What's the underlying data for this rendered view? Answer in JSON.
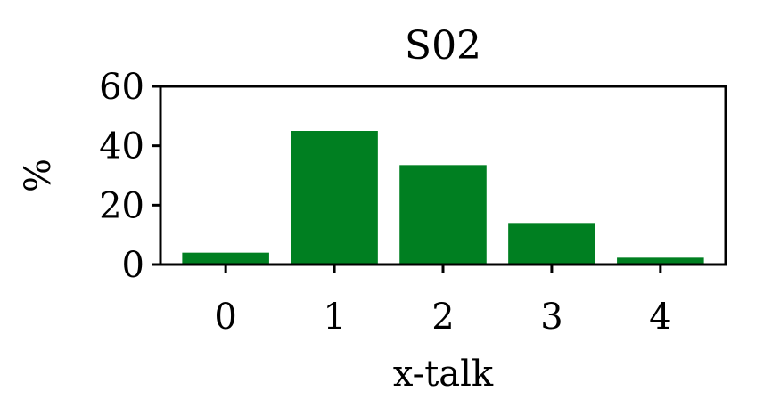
{
  "chart_data": {
    "type": "bar",
    "title": "S02",
    "xlabel": "x-talk",
    "ylabel": "%",
    "categories": [
      "0",
      "1",
      "2",
      "3",
      "4"
    ],
    "values": [
      4,
      45,
      33.5,
      14,
      2.3
    ],
    "ylim": [
      0,
      60
    ],
    "yticks": [
      "0",
      "20",
      "40",
      "60"
    ],
    "grid": false,
    "legend": "none",
    "bar_color": "#007f21"
  }
}
